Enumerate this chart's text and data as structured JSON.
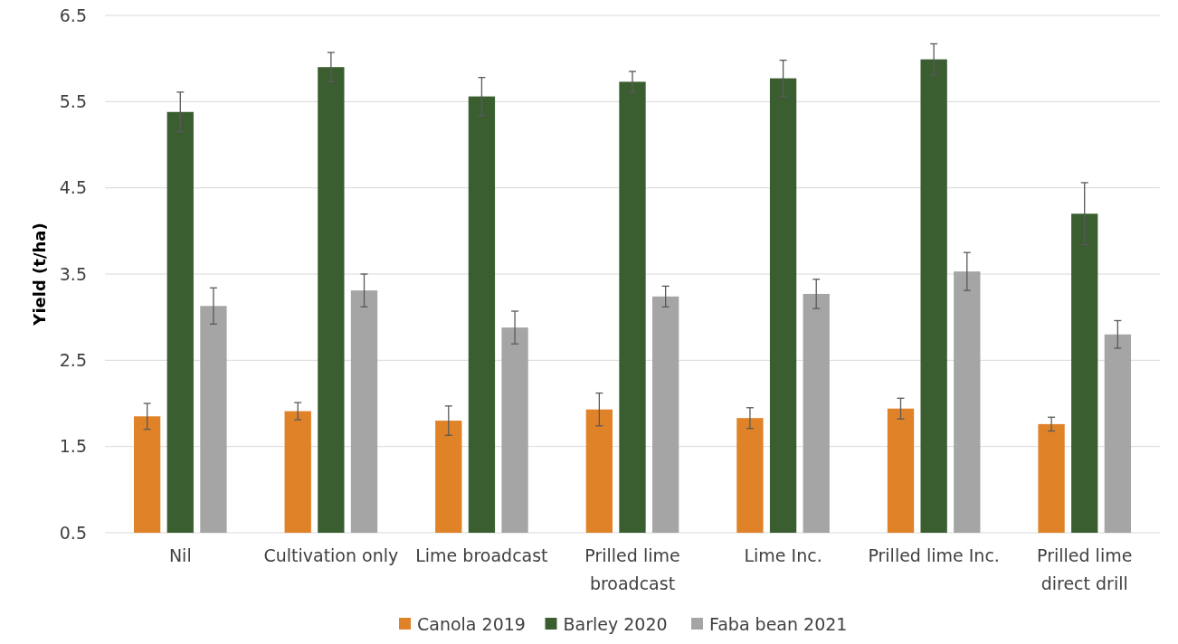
{
  "chart_data": {
    "type": "bar",
    "ylabel": "Yield (t/ha)",
    "categories": [
      "Nil",
      "Cultivation only",
      "Lime broadcast",
      "Prilled lime broadcast",
      "Lime Inc.",
      "Prilled lime Inc.",
      "Prilled lime direct drill"
    ],
    "series": [
      {
        "name": "Canola 2019",
        "color": "#e08228",
        "values": [
          1.85,
          1.91,
          1.8,
          1.93,
          1.83,
          1.94,
          1.76
        ],
        "errors": [
          0.15,
          0.1,
          0.17,
          0.19,
          0.12,
          0.12,
          0.08
        ]
      },
      {
        "name": "Barley 2020",
        "color": "#3b5e31",
        "values": [
          5.38,
          5.9,
          5.56,
          5.73,
          5.77,
          5.99,
          4.2
        ],
        "errors": [
          0.23,
          0.17,
          0.22,
          0.12,
          0.21,
          0.18,
          0.36
        ]
      },
      {
        "name": "Faba bean 2021",
        "color": "#a5a5a5",
        "values": [
          3.13,
          3.31,
          2.88,
          3.24,
          3.27,
          3.53,
          2.8
        ],
        "errors": [
          0.21,
          0.19,
          0.19,
          0.12,
          0.17,
          0.22,
          0.16
        ]
      }
    ],
    "ylim": [
      0.5,
      6.5
    ],
    "yticks": [
      0.5,
      1.5,
      2.5,
      3.5,
      4.5,
      5.5,
      6.5
    ],
    "grid": "y",
    "legend": "bottom"
  }
}
